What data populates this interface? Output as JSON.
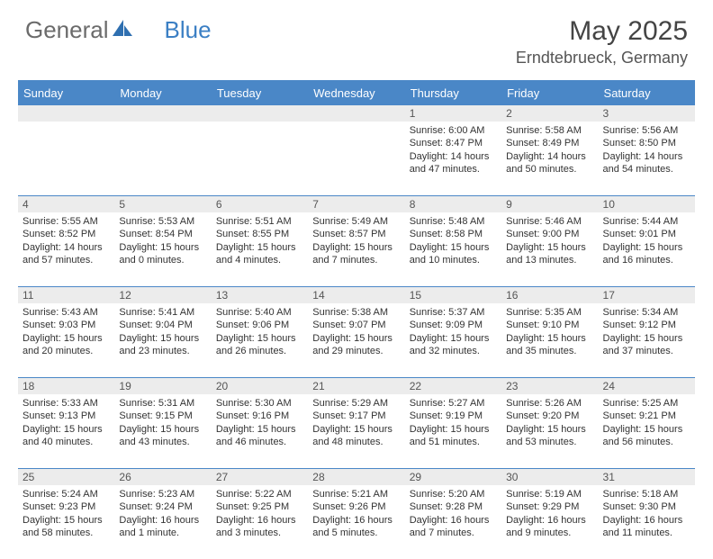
{
  "colors": {
    "accent": "#4a87c7",
    "header_text": "#ffffff",
    "daynum_bg": "#ececec",
    "text": "#333333",
    "logo_gray": "#6b6b6b",
    "logo_blue": "#3b7fc4"
  },
  "logo": {
    "part1": "General",
    "part2": "Blue"
  },
  "title": "May 2025",
  "location": "Erndtebrueck, Germany",
  "day_headers": [
    "Sunday",
    "Monday",
    "Tuesday",
    "Wednesday",
    "Thursday",
    "Friday",
    "Saturday"
  ],
  "weeks": [
    [
      {
        "n": "",
        "sunrise": "",
        "sunset": "",
        "daylight": ""
      },
      {
        "n": "",
        "sunrise": "",
        "sunset": "",
        "daylight": ""
      },
      {
        "n": "",
        "sunrise": "",
        "sunset": "",
        "daylight": ""
      },
      {
        "n": "",
        "sunrise": "",
        "sunset": "",
        "daylight": ""
      },
      {
        "n": "1",
        "sunrise": "Sunrise: 6:00 AM",
        "sunset": "Sunset: 8:47 PM",
        "daylight": "Daylight: 14 hours and 47 minutes."
      },
      {
        "n": "2",
        "sunrise": "Sunrise: 5:58 AM",
        "sunset": "Sunset: 8:49 PM",
        "daylight": "Daylight: 14 hours and 50 minutes."
      },
      {
        "n": "3",
        "sunrise": "Sunrise: 5:56 AM",
        "sunset": "Sunset: 8:50 PM",
        "daylight": "Daylight: 14 hours and 54 minutes."
      }
    ],
    [
      {
        "n": "4",
        "sunrise": "Sunrise: 5:55 AM",
        "sunset": "Sunset: 8:52 PM",
        "daylight": "Daylight: 14 hours and 57 minutes."
      },
      {
        "n": "5",
        "sunrise": "Sunrise: 5:53 AM",
        "sunset": "Sunset: 8:54 PM",
        "daylight": "Daylight: 15 hours and 0 minutes."
      },
      {
        "n": "6",
        "sunrise": "Sunrise: 5:51 AM",
        "sunset": "Sunset: 8:55 PM",
        "daylight": "Daylight: 15 hours and 4 minutes."
      },
      {
        "n": "7",
        "sunrise": "Sunrise: 5:49 AM",
        "sunset": "Sunset: 8:57 PM",
        "daylight": "Daylight: 15 hours and 7 minutes."
      },
      {
        "n": "8",
        "sunrise": "Sunrise: 5:48 AM",
        "sunset": "Sunset: 8:58 PM",
        "daylight": "Daylight: 15 hours and 10 minutes."
      },
      {
        "n": "9",
        "sunrise": "Sunrise: 5:46 AM",
        "sunset": "Sunset: 9:00 PM",
        "daylight": "Daylight: 15 hours and 13 minutes."
      },
      {
        "n": "10",
        "sunrise": "Sunrise: 5:44 AM",
        "sunset": "Sunset: 9:01 PM",
        "daylight": "Daylight: 15 hours and 16 minutes."
      }
    ],
    [
      {
        "n": "11",
        "sunrise": "Sunrise: 5:43 AM",
        "sunset": "Sunset: 9:03 PM",
        "daylight": "Daylight: 15 hours and 20 minutes."
      },
      {
        "n": "12",
        "sunrise": "Sunrise: 5:41 AM",
        "sunset": "Sunset: 9:04 PM",
        "daylight": "Daylight: 15 hours and 23 minutes."
      },
      {
        "n": "13",
        "sunrise": "Sunrise: 5:40 AM",
        "sunset": "Sunset: 9:06 PM",
        "daylight": "Daylight: 15 hours and 26 minutes."
      },
      {
        "n": "14",
        "sunrise": "Sunrise: 5:38 AM",
        "sunset": "Sunset: 9:07 PM",
        "daylight": "Daylight: 15 hours and 29 minutes."
      },
      {
        "n": "15",
        "sunrise": "Sunrise: 5:37 AM",
        "sunset": "Sunset: 9:09 PM",
        "daylight": "Daylight: 15 hours and 32 minutes."
      },
      {
        "n": "16",
        "sunrise": "Sunrise: 5:35 AM",
        "sunset": "Sunset: 9:10 PM",
        "daylight": "Daylight: 15 hours and 35 minutes."
      },
      {
        "n": "17",
        "sunrise": "Sunrise: 5:34 AM",
        "sunset": "Sunset: 9:12 PM",
        "daylight": "Daylight: 15 hours and 37 minutes."
      }
    ],
    [
      {
        "n": "18",
        "sunrise": "Sunrise: 5:33 AM",
        "sunset": "Sunset: 9:13 PM",
        "daylight": "Daylight: 15 hours and 40 minutes."
      },
      {
        "n": "19",
        "sunrise": "Sunrise: 5:31 AM",
        "sunset": "Sunset: 9:15 PM",
        "daylight": "Daylight: 15 hours and 43 minutes."
      },
      {
        "n": "20",
        "sunrise": "Sunrise: 5:30 AM",
        "sunset": "Sunset: 9:16 PM",
        "daylight": "Daylight: 15 hours and 46 minutes."
      },
      {
        "n": "21",
        "sunrise": "Sunrise: 5:29 AM",
        "sunset": "Sunset: 9:17 PM",
        "daylight": "Daylight: 15 hours and 48 minutes."
      },
      {
        "n": "22",
        "sunrise": "Sunrise: 5:27 AM",
        "sunset": "Sunset: 9:19 PM",
        "daylight": "Daylight: 15 hours and 51 minutes."
      },
      {
        "n": "23",
        "sunrise": "Sunrise: 5:26 AM",
        "sunset": "Sunset: 9:20 PM",
        "daylight": "Daylight: 15 hours and 53 minutes."
      },
      {
        "n": "24",
        "sunrise": "Sunrise: 5:25 AM",
        "sunset": "Sunset: 9:21 PM",
        "daylight": "Daylight: 15 hours and 56 minutes."
      }
    ],
    [
      {
        "n": "25",
        "sunrise": "Sunrise: 5:24 AM",
        "sunset": "Sunset: 9:23 PM",
        "daylight": "Daylight: 15 hours and 58 minutes."
      },
      {
        "n": "26",
        "sunrise": "Sunrise: 5:23 AM",
        "sunset": "Sunset: 9:24 PM",
        "daylight": "Daylight: 16 hours and 1 minute."
      },
      {
        "n": "27",
        "sunrise": "Sunrise: 5:22 AM",
        "sunset": "Sunset: 9:25 PM",
        "daylight": "Daylight: 16 hours and 3 minutes."
      },
      {
        "n": "28",
        "sunrise": "Sunrise: 5:21 AM",
        "sunset": "Sunset: 9:26 PM",
        "daylight": "Daylight: 16 hours and 5 minutes."
      },
      {
        "n": "29",
        "sunrise": "Sunrise: 5:20 AM",
        "sunset": "Sunset: 9:28 PM",
        "daylight": "Daylight: 16 hours and 7 minutes."
      },
      {
        "n": "30",
        "sunrise": "Sunrise: 5:19 AM",
        "sunset": "Sunset: 9:29 PM",
        "daylight": "Daylight: 16 hours and 9 minutes."
      },
      {
        "n": "31",
        "sunrise": "Sunrise: 5:18 AM",
        "sunset": "Sunset: 9:30 PM",
        "daylight": "Daylight: 16 hours and 11 minutes."
      }
    ]
  ]
}
